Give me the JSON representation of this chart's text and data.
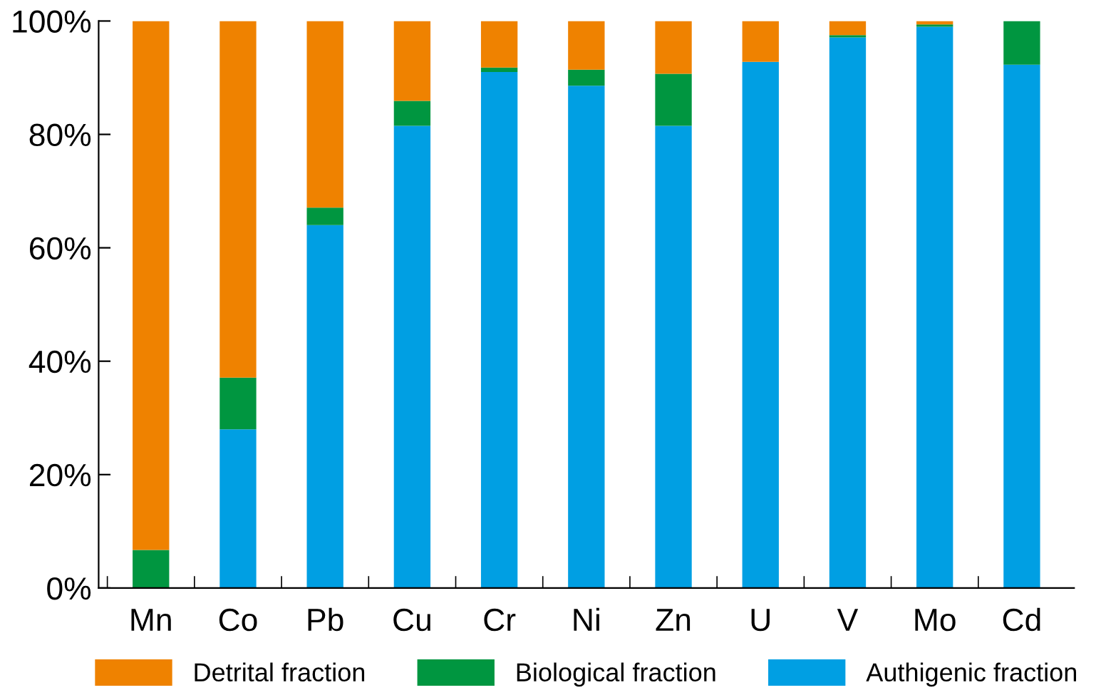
{
  "chart_data": {
    "type": "bar",
    "stacked": true,
    "categories": [
      "Mn",
      "Co",
      "Pb",
      "Cu",
      "Cr",
      "Ni",
      "Zn",
      "U",
      "V",
      "Mo",
      "Cd"
    ],
    "series": [
      {
        "name": "Authigenic fraction",
        "color": "#009fe3",
        "values": [
          0,
          28.0,
          64.0,
          81.5,
          91.0,
          88.6,
          81.5,
          92.8,
          97.1,
          99.0,
          92.3
        ]
      },
      {
        "name": "Biological fraction",
        "color": "#009640",
        "values": [
          6.7,
          9.1,
          3.1,
          4.4,
          0.8,
          2.8,
          9.2,
          0,
          0.4,
          0.4,
          7.7
        ]
      },
      {
        "name": "Detrital fraction",
        "color": "#ef8200",
        "values": [
          93.3,
          62.9,
          32.9,
          14.1,
          8.2,
          8.6,
          9.3,
          7.2,
          2.5,
          0.6,
          0
        ]
      }
    ],
    "ylim": [
      0,
      100
    ],
    "yticks": [
      {
        "value": 0,
        "label": "0%"
      },
      {
        "value": 20,
        "label": "20%"
      },
      {
        "value": 40,
        "label": "40%"
      },
      {
        "value": 60,
        "label": "60%"
      },
      {
        "value": 80,
        "label": "80%"
      },
      {
        "value": 100,
        "label": "100%"
      }
    ],
    "grid": false,
    "legend": "bottom"
  }
}
